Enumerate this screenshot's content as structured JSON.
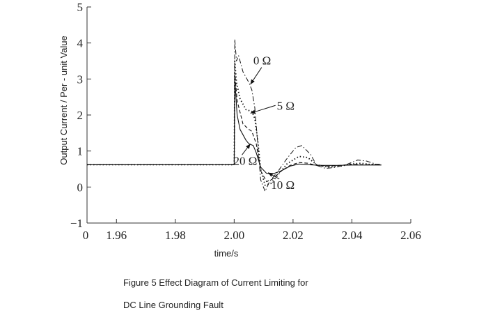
{
  "chart_data": {
    "type": "line",
    "title": "",
    "xlabel": "time/s",
    "ylabel": "Output Current / Per - unit Value",
    "xlim": [
      1.95,
      2.06
    ],
    "ylim": [
      -1,
      5
    ],
    "x_ticks": [
      1.96,
      1.98,
      2.0,
      2.02,
      2.04,
      2.06
    ],
    "x_tick_labels": [
      "1.96",
      "1.98",
      "2.00",
      "2.02",
      "2.04",
      "2.06"
    ],
    "x_origin_label": "0",
    "y_ticks": [
      -1,
      0,
      1,
      2,
      3,
      4,
      5
    ],
    "y_tick_labels": [
      "−1",
      "0",
      "1",
      "2",
      "3",
      "4",
      "5"
    ],
    "grid": false,
    "legend": "none",
    "series": [
      {
        "name": "0 Ω",
        "style": "dash-dot",
        "points": [
          [
            1.95,
            0.62
          ],
          [
            2.0,
            0.62
          ],
          [
            2.0002,
            4.1
          ],
          [
            2.0008,
            3.5
          ],
          [
            2.0015,
            3.65
          ],
          [
            2.003,
            3.2
          ],
          [
            2.005,
            2.9
          ],
          [
            2.006,
            2.7
          ],
          [
            2.007,
            2.2
          ],
          [
            2.008,
            1.2
          ],
          [
            2.009,
            0.2
          ],
          [
            2.0105,
            -0.12
          ],
          [
            2.012,
            0.15
          ],
          [
            2.015,
            0.45
          ],
          [
            2.018,
            0.8
          ],
          [
            2.021,
            1.1
          ],
          [
            2.023,
            1.15
          ],
          [
            2.026,
            0.9
          ],
          [
            2.028,
            0.6
          ],
          [
            2.031,
            0.52
          ],
          [
            2.034,
            0.54
          ],
          [
            2.038,
            0.62
          ],
          [
            2.042,
            0.75
          ],
          [
            2.045,
            0.72
          ],
          [
            2.048,
            0.64
          ],
          [
            2.05,
            0.62
          ]
        ]
      },
      {
        "name": "5 Ω",
        "style": "dotted",
        "points": [
          [
            1.95,
            0.62
          ],
          [
            2.0,
            0.62
          ],
          [
            2.0002,
            3.5
          ],
          [
            2.0008,
            2.9
          ],
          [
            2.002,
            2.45
          ],
          [
            2.004,
            2.15
          ],
          [
            2.006,
            2.1
          ],
          [
            2.007,
            1.9
          ],
          [
            2.008,
            1.3
          ],
          [
            2.009,
            0.5
          ],
          [
            2.0105,
            0.05
          ],
          [
            2.0125,
            0.1
          ],
          [
            2.015,
            0.35
          ],
          [
            2.018,
            0.65
          ],
          [
            2.022,
            0.85
          ],
          [
            2.025,
            0.82
          ],
          [
            2.028,
            0.62
          ],
          [
            2.032,
            0.55
          ],
          [
            2.036,
            0.58
          ],
          [
            2.04,
            0.64
          ],
          [
            2.043,
            0.66
          ],
          [
            2.046,
            0.63
          ],
          [
            2.05,
            0.62
          ]
        ]
      },
      {
        "name": "10 Ω",
        "style": "dashed",
        "points": [
          [
            1.95,
            0.62
          ],
          [
            2.0,
            0.62
          ],
          [
            2.0002,
            3.2
          ],
          [
            2.001,
            2.4
          ],
          [
            2.003,
            1.75
          ],
          [
            2.005,
            1.6
          ],
          [
            2.006,
            1.55
          ],
          [
            2.0075,
            1.2
          ],
          [
            2.009,
            0.45
          ],
          [
            2.011,
            0.15
          ],
          [
            2.013,
            0.22
          ],
          [
            2.016,
            0.45
          ],
          [
            2.019,
            0.6
          ],
          [
            2.022,
            0.68
          ],
          [
            2.025,
            0.66
          ],
          [
            2.028,
            0.6
          ],
          [
            2.032,
            0.58
          ],
          [
            2.036,
            0.6
          ],
          [
            2.04,
            0.63
          ],
          [
            2.044,
            0.62
          ],
          [
            2.05,
            0.62
          ]
        ]
      },
      {
        "name": "20 Ω",
        "style": "solid",
        "points": [
          [
            1.95,
            0.62
          ],
          [
            2.0,
            0.62
          ],
          [
            2.0002,
            3.0
          ],
          [
            2.001,
            2.0
          ],
          [
            2.002,
            1.6
          ],
          [
            2.004,
            1.3
          ],
          [
            2.005,
            1.2
          ],
          [
            2.0065,
            1.15
          ],
          [
            2.0075,
            0.95
          ],
          [
            2.009,
            0.55
          ],
          [
            2.011,
            0.38
          ],
          [
            2.013,
            0.36
          ],
          [
            2.016,
            0.45
          ],
          [
            2.019,
            0.58
          ],
          [
            2.022,
            0.64
          ],
          [
            2.025,
            0.62
          ],
          [
            2.03,
            0.6
          ],
          [
            2.035,
            0.6
          ],
          [
            2.04,
            0.61
          ],
          [
            2.05,
            0.61
          ]
        ]
      }
    ],
    "annotations": [
      {
        "text": "0 Ω",
        "x": 2.0065,
        "y": 3.4,
        "tip_x": 2.0055,
        "tip_y": 2.85
      },
      {
        "text": "5 Ω",
        "x": 2.0145,
        "y": 2.15,
        "tip_x": 2.0055,
        "tip_y": 2.05
      },
      {
        "text": "20 Ω",
        "x": 1.9998,
        "y": 0.62,
        "tip_x": 2.0055,
        "tip_y": 1.2
      },
      {
        "text": "10 Ω",
        "x": 2.0125,
        "y": -0.05,
        "tip_x": 2.0115,
        "tip_y": 0.4
      }
    ]
  },
  "caption": {
    "line1": "Figure 5 Effect Diagram of Current Limiting for",
    "line2": "DC Line Grounding Fault"
  }
}
